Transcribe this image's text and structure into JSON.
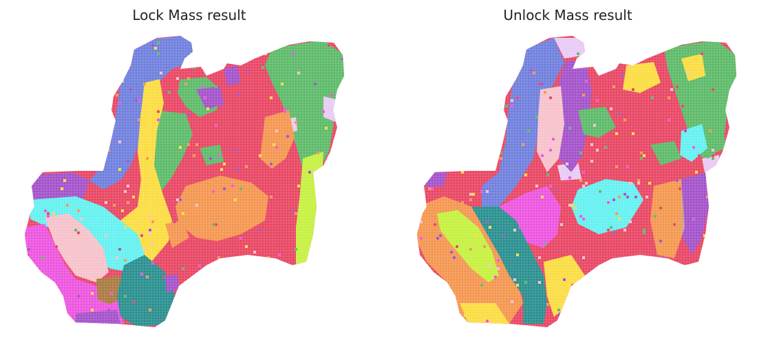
{
  "panels": [
    {
      "title": "Lock Mass result"
    },
    {
      "title": "Unlock Mass result"
    }
  ],
  "palette": {
    "blue": "#6a7bdc",
    "purple": "#a04cc8",
    "green": "#57b864",
    "red": "#e8405e",
    "yellow": "#fbdb3a",
    "orange": "#f4934a",
    "cyan": "#5ff0f0",
    "pink": "#f6bfc9",
    "magenta": "#ec4fde",
    "teal": "#228b8b",
    "lime": "#c4f038",
    "lavender": "#e8c8f4",
    "brown": "#a8763a"
  }
}
